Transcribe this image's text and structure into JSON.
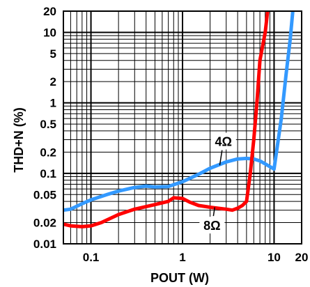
{
  "chart_data": {
    "type": "line",
    "title": "",
    "xlabel": "POUT (W)",
    "ylabel": "THD+N (%)",
    "xscale": "log",
    "yscale": "log",
    "xlim": [
      0.05,
      20
    ],
    "ylim": [
      0.01,
      20
    ],
    "grid": true,
    "x_ticks": [
      0.1,
      1,
      10,
      20
    ],
    "x_tick_labels": [
      "0.1",
      "1",
      "10",
      "20"
    ],
    "y_ticks": [
      0.01,
      0.02,
      0.05,
      0.1,
      0.2,
      0.5,
      1,
      2,
      5,
      10,
      20
    ],
    "y_tick_labels": [
      "0.01",
      "0.02",
      "0.05",
      "0.1",
      "0.2",
      "0.5",
      "1",
      "2",
      "5",
      "10",
      "20"
    ],
    "series": [
      {
        "name": "4Ω",
        "color": "#3399ff",
        "points": [
          [
            0.05,
            0.03
          ],
          [
            0.06,
            0.031
          ],
          [
            0.08,
            0.037
          ],
          [
            0.1,
            0.042
          ],
          [
            0.15,
            0.05
          ],
          [
            0.2,
            0.056
          ],
          [
            0.3,
            0.063
          ],
          [
            0.4,
            0.066
          ],
          [
            0.5,
            0.064
          ],
          [
            0.7,
            0.065
          ],
          [
            1,
            0.076
          ],
          [
            1.5,
            0.097
          ],
          [
            2,
            0.118
          ],
          [
            3,
            0.145
          ],
          [
            4,
            0.16
          ],
          [
            5,
            0.163
          ],
          [
            6,
            0.16
          ],
          [
            7,
            0.15
          ],
          [
            8.5,
            0.13
          ],
          [
            10,
            0.115
          ],
          [
            12,
            0.6
          ],
          [
            13.5,
            2.5
          ],
          [
            15,
            8
          ],
          [
            16,
            20
          ]
        ]
      },
      {
        "name": "8Ω",
        "color": "#ff0000",
        "points": [
          [
            0.05,
            0.019
          ],
          [
            0.06,
            0.018
          ],
          [
            0.08,
            0.0175
          ],
          [
            0.1,
            0.018
          ],
          [
            0.13,
            0.02
          ],
          [
            0.2,
            0.026
          ],
          [
            0.3,
            0.031
          ],
          [
            0.5,
            0.036
          ],
          [
            0.7,
            0.04
          ],
          [
            0.8,
            0.045
          ],
          [
            1,
            0.044
          ],
          [
            1.2,
            0.039
          ],
          [
            1.5,
            0.035
          ],
          [
            2,
            0.033
          ],
          [
            3,
            0.031
          ],
          [
            3.5,
            0.03
          ],
          [
            4,
            0.032
          ],
          [
            4.5,
            0.035
          ],
          [
            5,
            0.04
          ],
          [
            5.5,
            0.1
          ],
          [
            6,
            0.3
          ],
          [
            6.5,
            1
          ],
          [
            7,
            4
          ],
          [
            8,
            10
          ],
          [
            8.5,
            20
          ]
        ]
      }
    ],
    "annotations": [
      {
        "text": "4Ω",
        "x": 2.8,
        "y": 0.28
      },
      {
        "text": "8Ω",
        "x": 2.1,
        "y": 0.018
      }
    ]
  }
}
